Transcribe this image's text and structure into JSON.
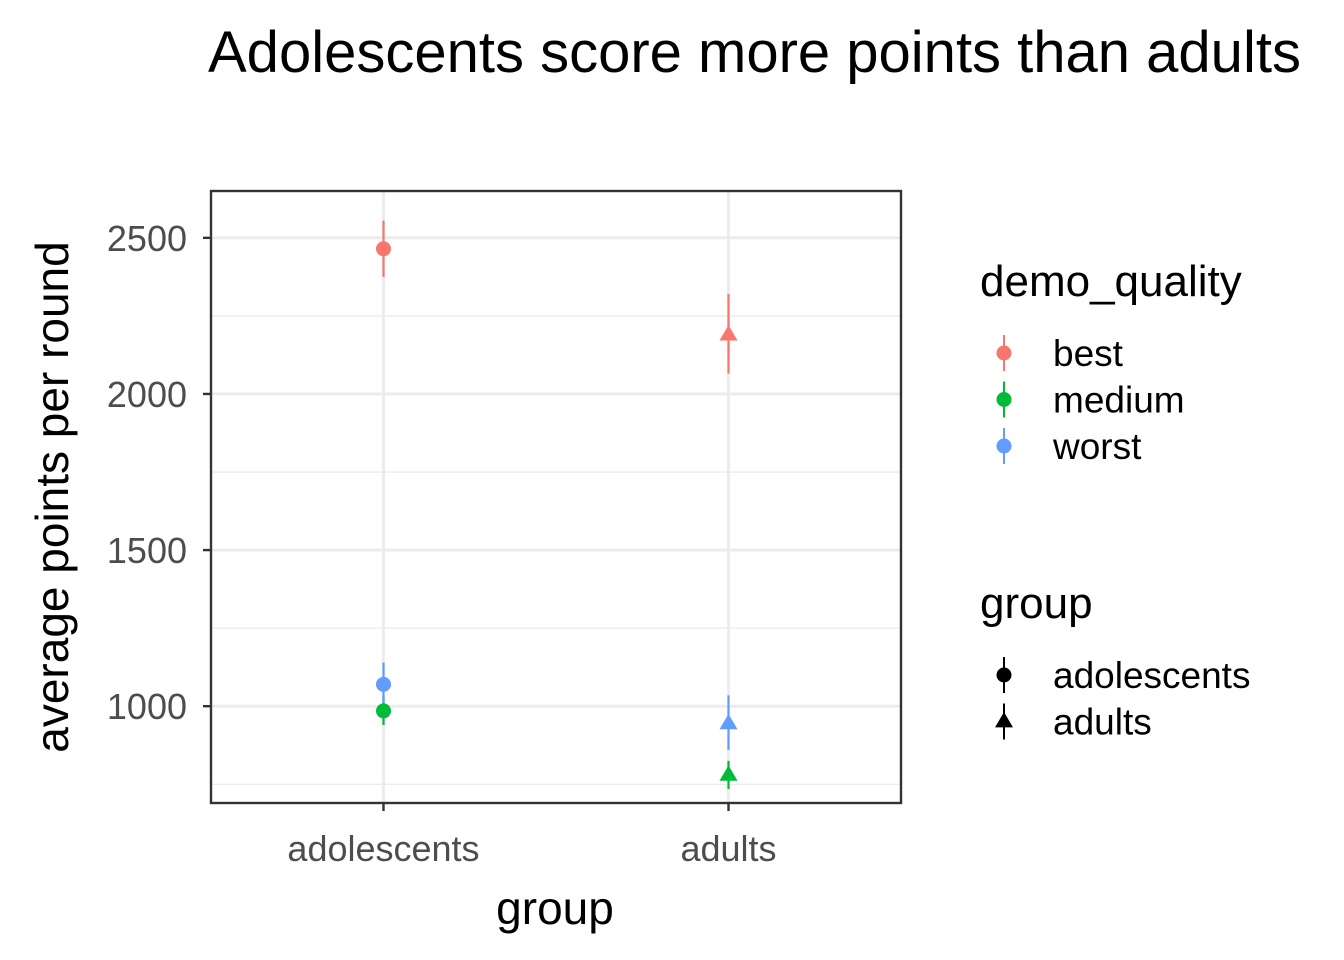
{
  "chart_data": {
    "type": "pointrange",
    "title": "Adolescents score more points than adults",
    "xlabel": "group",
    "ylabel": "average points per round",
    "categories": [
      "adolescents",
      "adults"
    ],
    "ylim": [
      690,
      2650
    ],
    "yticks": [
      1000,
      1500,
      2000,
      2500
    ],
    "yticks_minor": [
      750,
      1250,
      1750,
      2250
    ],
    "grid": true,
    "series": [
      {
        "name": "best",
        "color": "#F8766D",
        "points": [
          {
            "group": "adolescents",
            "shape": "circle",
            "value": 2465,
            "lower": 2375,
            "upper": 2555
          },
          {
            "group": "adults",
            "shape": "triangle",
            "value": 2190,
            "lower": 2065,
            "upper": 2320
          }
        ]
      },
      {
        "name": "medium",
        "color": "#00BA38",
        "points": [
          {
            "group": "adolescents",
            "shape": "circle",
            "value": 985,
            "lower": 940,
            "upper": 1030
          },
          {
            "group": "adults",
            "shape": "triangle",
            "value": 780,
            "lower": 735,
            "upper": 825
          }
        ]
      },
      {
        "name": "worst",
        "color": "#619CFF",
        "points": [
          {
            "group": "adolescents",
            "shape": "circle",
            "value": 1070,
            "lower": 1010,
            "upper": 1140
          },
          {
            "group": "adults",
            "shape": "triangle",
            "value": 945,
            "lower": 860,
            "upper": 1035
          }
        ]
      }
    ],
    "legends": [
      {
        "title": "demo_quality",
        "position": "right",
        "items": [
          {
            "label": "best",
            "color": "#F8766D",
            "shape": "circle"
          },
          {
            "label": "medium",
            "color": "#00BA38",
            "shape": "circle"
          },
          {
            "label": "worst",
            "color": "#619CFF",
            "shape": "circle"
          }
        ]
      },
      {
        "title": "group",
        "position": "right",
        "items": [
          {
            "label": "adolescents",
            "color": "#000000",
            "shape": "circle"
          },
          {
            "label": "adults",
            "color": "#000000",
            "shape": "triangle"
          }
        ]
      }
    ]
  }
}
